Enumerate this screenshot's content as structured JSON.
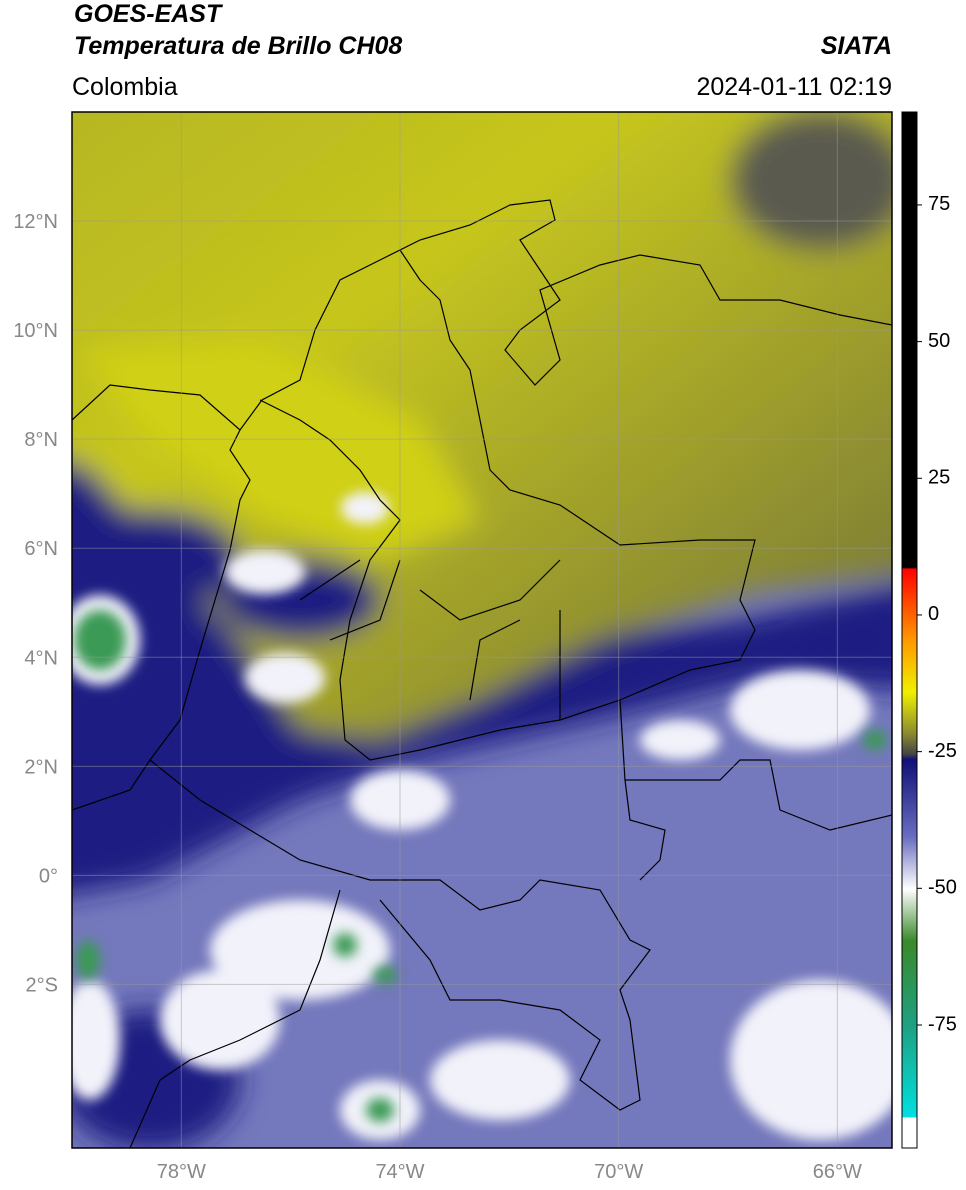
{
  "header": {
    "title": "GOES-EAST",
    "subtitle": "Temperatura de Brillo CH08",
    "source": "SIATA",
    "region": "Colombia",
    "datetime": "2024-01-11 02:19"
  },
  "map": {
    "lonlim": [
      -80,
      -65
    ],
    "latlim": [
      -5,
      14
    ],
    "xticks": [
      {
        "value": -78,
        "label": "78°W"
      },
      {
        "value": -74,
        "label": "74°W"
      },
      {
        "value": -70,
        "label": "70°W"
      },
      {
        "value": -66,
        "label": "66°W"
      }
    ],
    "yticks": [
      {
        "value": 12,
        "label": "12°N"
      },
      {
        "value": 10,
        "label": "10°N"
      },
      {
        "value": 8,
        "label": "8°N"
      },
      {
        "value": 6,
        "label": "6°N"
      },
      {
        "value": 4,
        "label": "4°N"
      },
      {
        "value": 2,
        "label": "2°N"
      },
      {
        "value": 0,
        "label": "0°"
      },
      {
        "value": -2,
        "label": "2°S"
      }
    ]
  },
  "colorbar": {
    "lim": [
      -97.5,
      92
    ],
    "ticks": [
      75,
      50,
      25,
      0,
      -25,
      -50,
      -75
    ]
  }
}
